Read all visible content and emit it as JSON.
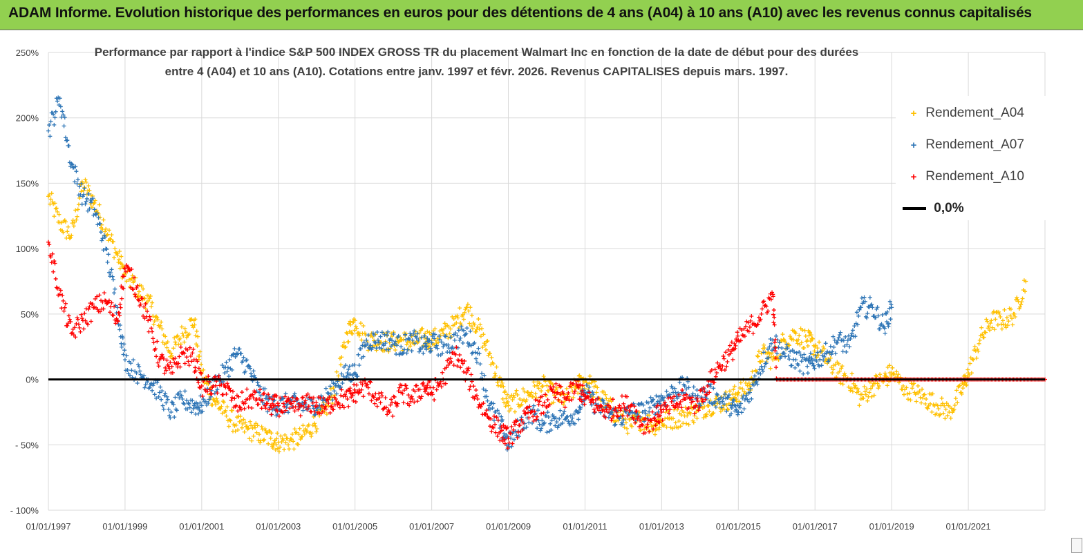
{
  "banner": {
    "title": "ADAM Informe. Evolution historique des performances en euros pour des détentions de 4 ans (A04) à 10 ans (A10) avec les revenus connus capitalisés"
  },
  "colors": {
    "banner_bg": "#92d050",
    "a04": "#ffc000",
    "a07": "#2e75b6",
    "a10": "#ff0000",
    "zero_line": "#000000",
    "grid": "#d9d9d9"
  },
  "chart_data": {
    "type": "scatter",
    "title_line1": "Performance par rapport à l'indice S&P 500 INDEX GROSS TR  du placement Walmart Inc en fonction de la date de début pour des durées",
    "title_line2": "entre 4 (A04) et 10 ans (A10).  Cotations entre janv. 1997 et févr. 2026. Revenus  CAPITALISES depuis mars. 1997.",
    "xlabel": "",
    "ylabel": "",
    "x_range": [
      1997.0,
      2023.0
    ],
    "ylim": [
      -100,
      250
    ],
    "y_ticks": [
      {
        "value": 250,
        "label": "250%"
      },
      {
        "value": 200,
        "label": "200%"
      },
      {
        "value": 150,
        "label": "150%"
      },
      {
        "value": 100,
        "label": "100%"
      },
      {
        "value": 50,
        "label": "50%"
      },
      {
        "value": 0,
        "label": "0%"
      },
      {
        "value": -50,
        "label": "- 50%"
      },
      {
        "value": -100,
        "label": "- 100%"
      }
    ],
    "x_ticks": [
      {
        "value": 1997,
        "label": "01/01/1997"
      },
      {
        "value": 1999,
        "label": "01/01/1999"
      },
      {
        "value": 2001,
        "label": "01/01/2001"
      },
      {
        "value": 2003,
        "label": "01/01/2003"
      },
      {
        "value": 2005,
        "label": "01/01/2005"
      },
      {
        "value": 2007,
        "label": "01/01/2007"
      },
      {
        "value": 2009,
        "label": "01/01/2009"
      },
      {
        "value": 2011,
        "label": "01/01/2011"
      },
      {
        "value": 2013,
        "label": "01/01/2013"
      },
      {
        "value": 2015,
        "label": "01/01/2015"
      },
      {
        "value": 2017,
        "label": "01/01/2017"
      },
      {
        "value": 2019,
        "label": "01/01/2019"
      },
      {
        "value": 2021,
        "label": "01/01/2021"
      }
    ],
    "grid": true,
    "legend_position": "top-right",
    "series": [
      {
        "name": "Rendement_A04",
        "marker": "+",
        "color": "#ffc000",
        "x": [
          1997.0,
          1997.3,
          1997.6,
          1997.9,
          1998.2,
          1998.5,
          1998.8,
          1999.0,
          1999.3,
          1999.6,
          1999.9,
          2000.2,
          2000.5,
          2000.8,
          2001.0,
          2001.3,
          2001.6,
          2001.9,
          2002.2,
          2002.5,
          2002.8,
          2003.0,
          2003.3,
          2003.6,
          2003.9,
          2004.2,
          2004.5,
          2004.8,
          2005.0,
          2005.3,
          2005.6,
          2005.9,
          2006.2,
          2006.5,
          2006.8,
          2007.0,
          2007.3,
          2007.6,
          2007.9,
          2008.2,
          2008.5,
          2008.8,
          2009.0,
          2009.3,
          2009.6,
          2009.9,
          2010.2,
          2010.5,
          2010.8,
          2011.0,
          2011.3,
          2011.6,
          2011.9,
          2012.2,
          2012.5,
          2012.8,
          2013.0,
          2013.3,
          2013.6,
          2013.9,
          2014.2,
          2014.5,
          2014.8,
          2015.0,
          2015.3,
          2015.6,
          2015.9,
          2016.2,
          2016.5,
          2016.8,
          2017.0,
          2017.3,
          2017.6,
          2017.9,
          2018.2,
          2018.5,
          2018.8,
          2019.0,
          2019.3,
          2019.6,
          2019.9,
          2020.2,
          2020.5,
          2020.8,
          2021.0,
          2021.3,
          2021.6,
          2021.9,
          2022.2,
          2022.5
        ],
        "values": [
          140,
          120,
          110,
          150,
          135,
          115,
          95,
          80,
          70,
          60,
          40,
          20,
          35,
          45,
          5,
          -15,
          -25,
          -35,
          -38,
          -42,
          -45,
          -48,
          -47,
          -44,
          -35,
          -25,
          -5,
          35,
          45,
          30,
          30,
          28,
          30,
          28,
          32,
          30,
          35,
          42,
          55,
          40,
          20,
          -5,
          -20,
          -15,
          -10,
          -5,
          -12,
          -15,
          -5,
          0,
          -10,
          -20,
          -30,
          -35,
          -30,
          -35,
          -32,
          -30,
          -28,
          -25,
          -20,
          -18,
          -15,
          -10,
          -5,
          20,
          15,
          30,
          35,
          30,
          25,
          15,
          5,
          0,
          -15,
          -5,
          0,
          5,
          -5,
          -10,
          -15,
          -20,
          -25,
          -10,
          5,
          30,
          45,
          45,
          50,
          75
        ]
      },
      {
        "name": "Rendement_A07",
        "marker": "+",
        "color": "#2e75b6",
        "x": [
          1997.0,
          1997.3,
          1997.6,
          1997.9,
          1998.2,
          1998.5,
          1998.8,
          1999.0,
          1999.3,
          1999.6,
          1999.9,
          2000.2,
          2000.5,
          2000.8,
          2001.0,
          2001.3,
          2001.6,
          2001.9,
          2002.2,
          2002.5,
          2002.8,
          2003.0,
          2003.3,
          2003.6,
          2003.9,
          2004.2,
          2004.5,
          2004.8,
          2005.0,
          2005.3,
          2005.6,
          2005.9,
          2006.2,
          2006.5,
          2006.8,
          2007.0,
          2007.3,
          2007.6,
          2007.9,
          2008.2,
          2008.5,
          2008.8,
          2009.0,
          2009.3,
          2009.6,
          2009.9,
          2010.2,
          2010.5,
          2010.8,
          2011.0,
          2011.3,
          2011.6,
          2011.9,
          2012.2,
          2012.5,
          2012.8,
          2013.0,
          2013.3,
          2013.6,
          2013.9,
          2014.2,
          2014.5,
          2014.8,
          2015.0,
          2015.3,
          2015.6,
          2015.9,
          2016.2,
          2016.5,
          2016.8,
          2017.0,
          2017.3,
          2017.6,
          2017.9,
          2018.2,
          2018.5,
          2018.8,
          2019.0
        ],
        "values": [
          190,
          215,
          165,
          140,
          130,
          100,
          55,
          15,
          5,
          0,
          -10,
          -25,
          -15,
          -20,
          -20,
          -5,
          5,
          20,
          10,
          -10,
          -20,
          -20,
          -18,
          -20,
          -20,
          -15,
          -5,
          5,
          5,
          30,
          30,
          30,
          25,
          30,
          25,
          28,
          25,
          30,
          35,
          20,
          -20,
          -35,
          -50,
          -35,
          -25,
          -35,
          -30,
          -30,
          -25,
          -10,
          -20,
          -25,
          -30,
          -25,
          -25,
          -20,
          -15,
          -10,
          -5,
          -15,
          -10,
          -15,
          -20,
          -25,
          -10,
          10,
          30,
          20,
          15,
          10,
          15,
          20,
          30,
          25,
          55,
          55,
          40,
          55
        ]
      },
      {
        "name": "Rendement_A10",
        "marker": "+",
        "color": "#ff0000",
        "x": [
          1997.0,
          1997.3,
          1997.6,
          1997.9,
          1998.2,
          1998.5,
          1998.8,
          1999.0,
          1999.3,
          1999.6,
          1999.9,
          2000.2,
          2000.5,
          2000.8,
          2001.0,
          2001.3,
          2001.6,
          2001.9,
          2002.2,
          2002.5,
          2002.8,
          2003.0,
          2003.3,
          2003.6,
          2003.9,
          2004.2,
          2004.5,
          2004.8,
          2005.0,
          2005.3,
          2005.6,
          2005.9,
          2006.2,
          2006.5,
          2006.8,
          2007.0,
          2007.3,
          2007.6,
          2007.9,
          2008.2,
          2008.5,
          2008.8,
          2009.0,
          2009.3,
          2009.6,
          2009.9,
          2010.2,
          2010.5,
          2010.8,
          2011.0,
          2011.3,
          2011.6,
          2011.9,
          2012.2,
          2012.5,
          2012.8,
          2013.0,
          2013.3,
          2013.6,
          2013.9,
          2014.2,
          2014.5,
          2014.8,
          2015.0,
          2015.3,
          2015.6,
          2015.9,
          2016.0,
          2016.5,
          2017.0,
          2017.5,
          2018.0,
          2018.5,
          2019.0,
          2019.5,
          2020.0,
          2020.5,
          2021.0,
          2021.5,
          2022.0,
          2022.5,
          2023.0
        ],
        "values": [
          105,
          65,
          35,
          45,
          55,
          60,
          45,
          85,
          70,
          45,
          15,
          5,
          20,
          15,
          -5,
          -5,
          -5,
          -20,
          -15,
          -15,
          -20,
          -20,
          -22,
          -20,
          -18,
          -22,
          -15,
          -15,
          -10,
          -5,
          -15,
          -25,
          -10,
          -15,
          -5,
          -10,
          0,
          20,
          5,
          -15,
          -30,
          -40,
          -45,
          -35,
          -25,
          -20,
          -10,
          -15,
          -5,
          -15,
          -20,
          -25,
          -20,
          -20,
          -35,
          -30,
          -25,
          -20,
          -15,
          -20,
          -5,
          10,
          20,
          30,
          40,
          50,
          65,
          0,
          0,
          0,
          0,
          0,
          0,
          0,
          0,
          0,
          0,
          0,
          0,
          0,
          0,
          0
        ]
      },
      {
        "name": "0,0%",
        "marker": "line",
        "color": "#000000",
        "x": [
          1997.0,
          2023.0
        ],
        "values": [
          0,
          0
        ]
      }
    ]
  }
}
